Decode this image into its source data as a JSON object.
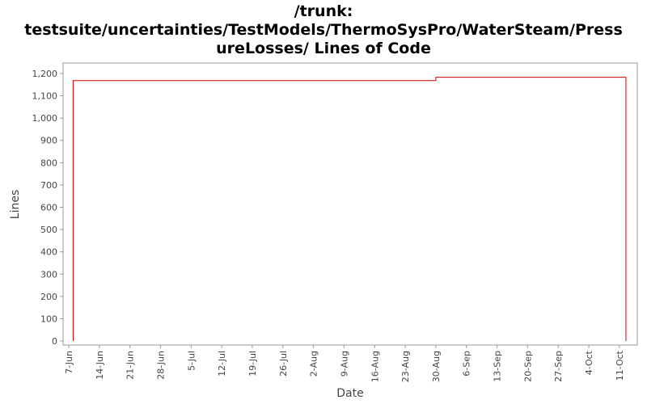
{
  "chart_data": {
    "type": "line",
    "title": [
      "/trunk:",
      "testsuite/uncertainties/TestModels/ThermoSysPro/WaterSteam/Press",
      "ureLosses/ Lines of Code"
    ],
    "x_label": "Date",
    "y_label": "Lines",
    "series": [
      {
        "name": "Lines",
        "color": "#cc0000",
        "x": [
          1,
          1,
          84,
          84,
          127.5,
          127.5
        ],
        "values": [
          0,
          1168,
          1168,
          1183,
          1183,
          0
        ]
      }
    ],
    "xlim": [
      -1.3,
      130.1
    ],
    "xticks": [
      {
        "value": 0,
        "label": "7-Jun"
      },
      {
        "value": 7,
        "label": "14-Jun"
      },
      {
        "value": 14,
        "label": "21-Jun"
      },
      {
        "value": 21,
        "label": "28-Jun"
      },
      {
        "value": 28,
        "label": "5-Jul"
      },
      {
        "value": 35,
        "label": "12-Jul"
      },
      {
        "value": 42,
        "label": "19-Jul"
      },
      {
        "value": 49,
        "label": "26-Jul"
      },
      {
        "value": 56,
        "label": "2-Aug"
      },
      {
        "value": 63,
        "label": "9-Aug"
      },
      {
        "value": 70,
        "label": "16-Aug"
      },
      {
        "value": 77,
        "label": "23-Aug"
      },
      {
        "value": 84,
        "label": "30-Aug"
      },
      {
        "value": 91,
        "label": "6-Sep"
      },
      {
        "value": 98,
        "label": "13-Sep"
      },
      {
        "value": 105,
        "label": "20-Sep"
      },
      {
        "value": 112,
        "label": "27-Sep"
      },
      {
        "value": 119,
        "label": "4-Oct"
      },
      {
        "value": 126,
        "label": "11-Oct"
      }
    ],
    "ylim": [
      -18,
      1247
    ],
    "yticks": [
      0,
      100,
      200,
      300,
      400,
      500,
      600,
      700,
      800,
      900,
      {
        "value": 1000,
        "label": "1,000"
      },
      {
        "value": 1100,
        "label": "1,100"
      },
      {
        "value": 1200,
        "label": "1,200"
      }
    ],
    "grid": false
  }
}
